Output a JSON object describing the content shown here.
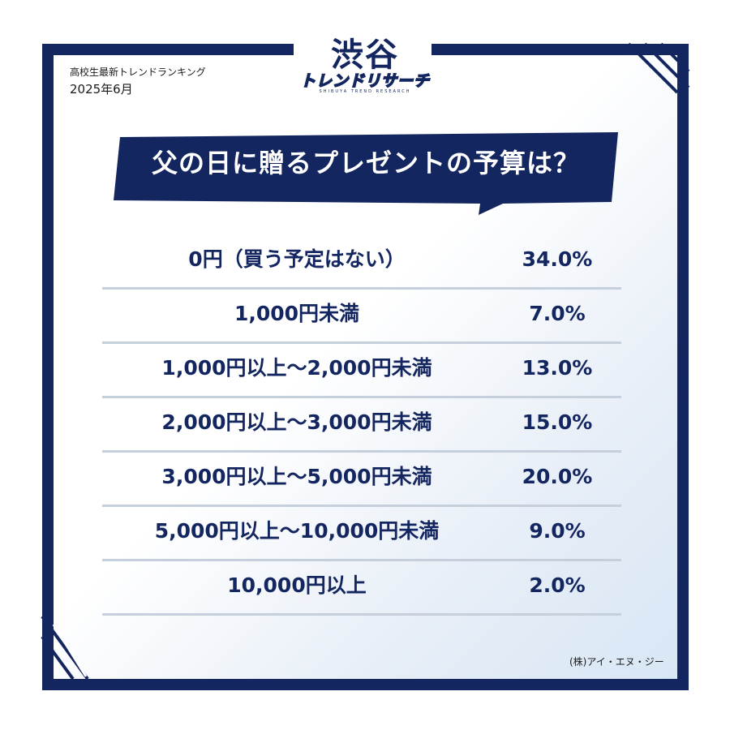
{
  "header": {
    "subtitle": "高校生最新トレンドランキング",
    "date": "2025年6月"
  },
  "logo": {
    "main": "渋谷",
    "sub": "トレンドリサーチ",
    "tiny": "SHIBUYA TREND RESEARCH"
  },
  "banner": {
    "title": "父の日に贈るプレゼントの予算は？"
  },
  "rows": [
    {
      "label": "0円（買う予定はない）",
      "value": "34.0%"
    },
    {
      "label": "1,000円未満",
      "value": "7.0%"
    },
    {
      "label": "1,000円以上〜2,000円未満",
      "value": "13.0%"
    },
    {
      "label": "2,000円以上〜3,000円未満",
      "value": "15.0%"
    },
    {
      "label": "3,000円以上〜5,000円未満",
      "value": "20.0%"
    },
    {
      "label": "5,000円以上〜10,000円未満",
      "value": "9.0%"
    },
    {
      "label": "10,000円以上",
      "value": "2.0%"
    }
  ],
  "footer": {
    "copyright": "(株)アイ・エヌ・ジー"
  },
  "colors": {
    "navy": "#142660",
    "divider": "#c6d0dc"
  }
}
